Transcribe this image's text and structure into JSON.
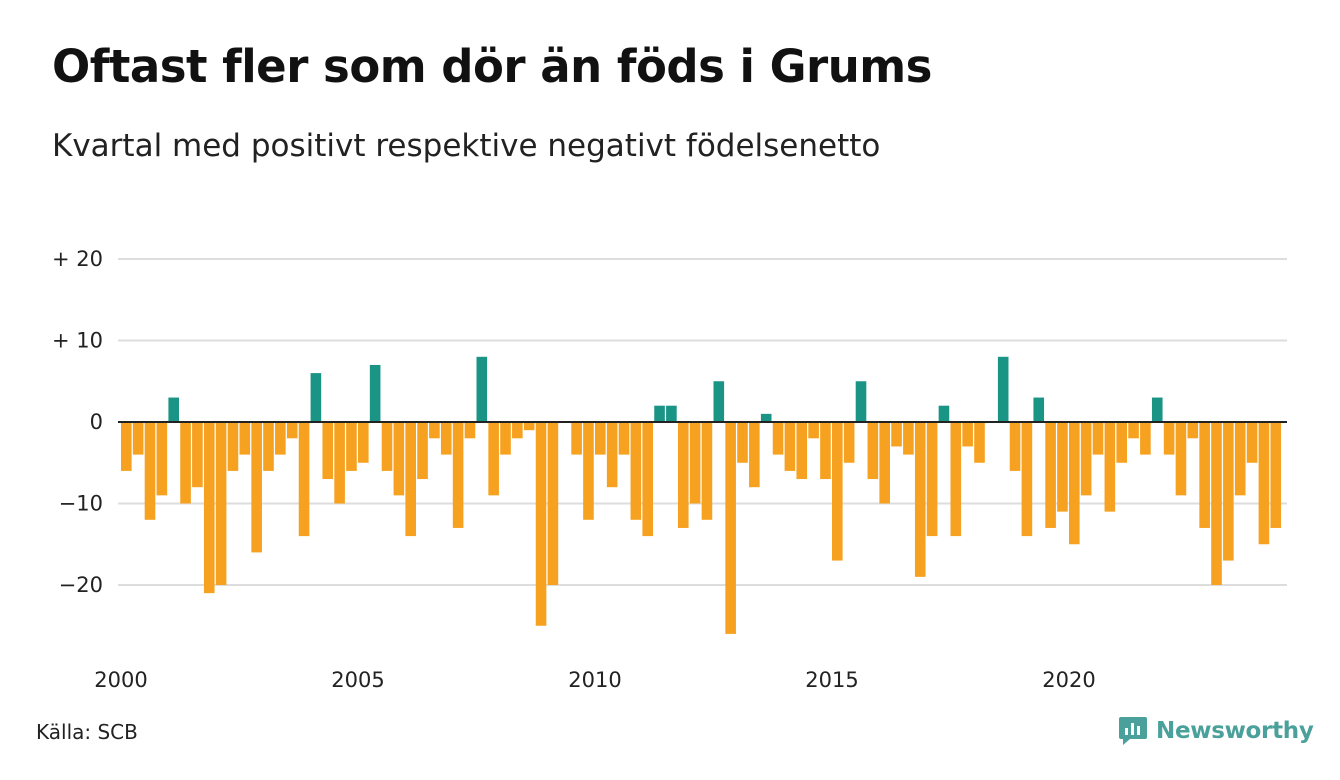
{
  "title": "Oftast fler som dör än föds i Grums",
  "subtitle": "Kvartal med positivt respektive negativt födelsenetto",
  "source": "Källa: SCB",
  "brand": {
    "name": "Newsworthy",
    "icon": "newsworthy-logo-icon"
  },
  "colors": {
    "positive": "#1a9485",
    "negative": "#f6a11f",
    "grid": "#dddddd",
    "zero_line": "#222222"
  },
  "chart_data": {
    "type": "bar",
    "title": "Oftast fler som dör än föds i Grums",
    "subtitle": "Kvartal med positivt respektive negativt födelsenetto",
    "xlabel": "",
    "ylabel": "",
    "ylim": [
      -27,
      22
    ],
    "yticks": [
      20,
      10,
      0,
      -10,
      -20
    ],
    "ytick_labels": [
      "+ 20",
      "+ 10",
      "0",
      "−10",
      "−20"
    ],
    "xtick_labels": [
      "2000",
      "2005",
      "2010",
      "2015",
      "2020"
    ],
    "x_start": "2000 Q1",
    "grid": true,
    "legend": "none",
    "values": [
      -6,
      -4,
      -12,
      -9,
      3,
      -10,
      -8,
      -21,
      -20,
      -6,
      -4,
      -16,
      -6,
      -4,
      -2,
      -14,
      6,
      -7,
      -10,
      -6,
      -5,
      7,
      -6,
      -9,
      -14,
      -7,
      -2,
      -4,
      -13,
      -2,
      8,
      -9,
      -4,
      -2,
      -1,
      -25,
      -20,
      0,
      -4,
      -12,
      -4,
      -8,
      -4,
      -12,
      -14,
      2,
      2,
      -13,
      -10,
      -12,
      5,
      -26,
      -5,
      -8,
      1,
      -4,
      -6,
      -7,
      -2,
      -7,
      -17,
      -5,
      5,
      -7,
      -10,
      -3,
      -4,
      -19,
      -14,
      2,
      -14,
      -3,
      -5,
      0,
      8,
      -6,
      -14,
      3,
      -13,
      -11,
      -15,
      -9,
      -4,
      -11,
      -5,
      -2,
      -4,
      3,
      -4,
      -9,
      -2,
      -13,
      -20,
      -17,
      -9,
      -5,
      -15,
      -13
    ]
  }
}
